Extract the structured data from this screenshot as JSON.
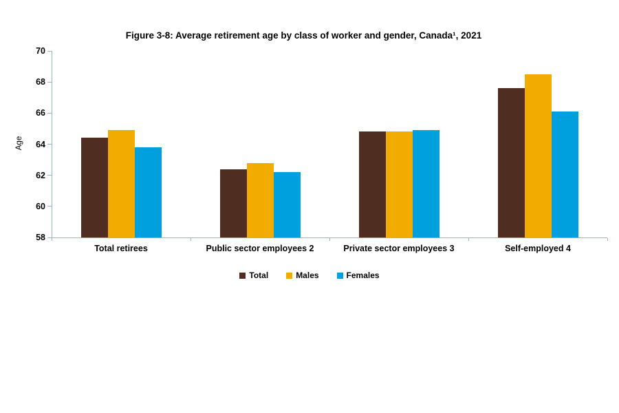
{
  "chart_data": {
    "type": "bar",
    "title": "Figure 3-8: Average retirement age by class of worker and gender, Canada¹, 2021",
    "ylabel": "Age",
    "xlabel": "",
    "ylim": [
      58,
      70
    ],
    "ytick_step": 2,
    "ytick_labels": [
      "58",
      "60",
      "62",
      "64",
      "66",
      "68",
      "70"
    ],
    "grid": false,
    "legend_position": "bottom",
    "categories": [
      "Total retirees",
      "Public sector employees 2",
      "Private sector employees 3",
      "Self-employed 4"
    ],
    "series": [
      {
        "name": "Total",
        "color": "#4F2D20",
        "values": [
          64.4,
          62.4,
          64.8,
          67.6
        ]
      },
      {
        "name": "Males",
        "color": "#F2AB00",
        "values": [
          64.9,
          62.8,
          64.8,
          68.5
        ]
      },
      {
        "name": "Females",
        "color": "#00A0DF",
        "values": [
          63.8,
          62.2,
          64.9,
          66.1
        ]
      }
    ],
    "axis_color": "#95B3D7",
    "text_color": "#000000",
    "background_color": "#ffffff"
  }
}
